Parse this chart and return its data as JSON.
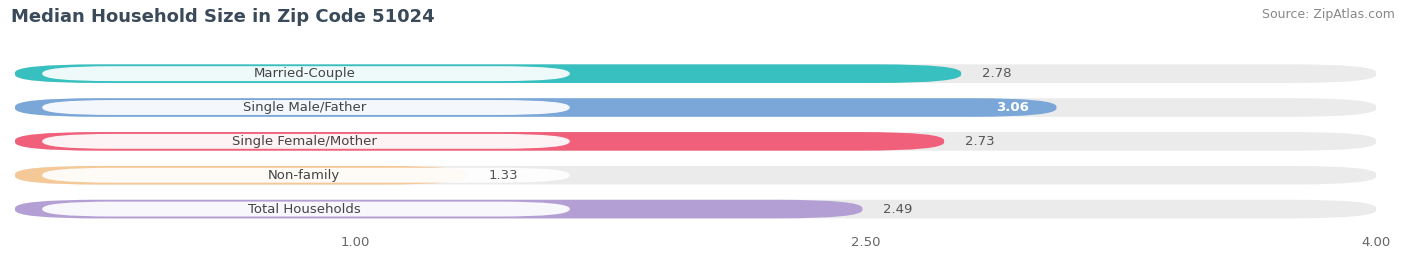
{
  "title": "Median Household Size in Zip Code 51024",
  "source": "Source: ZipAtlas.com",
  "categories": [
    "Married-Couple",
    "Single Male/Father",
    "Single Female/Mother",
    "Non-family",
    "Total Households"
  ],
  "values": [
    2.78,
    3.06,
    2.73,
    1.33,
    2.49
  ],
  "bar_colors": [
    "#38c0c0",
    "#7ba7d8",
    "#f0607a",
    "#f5c898",
    "#b39fd4"
  ],
  "bar_bg_colors": [
    "#ebebeb",
    "#ebebeb",
    "#ebebeb",
    "#ebebeb",
    "#ebebeb"
  ],
  "value_inside": [
    false,
    true,
    false,
    false,
    false
  ],
  "xlim": [
    0.0,
    4.0
  ],
  "xstart": 0.0,
  "xticks": [
    1.0,
    2.5,
    4.0
  ],
  "bar_height": 0.55,
  "bar_gap": 1.0,
  "title_fontsize": 13,
  "source_fontsize": 9,
  "label_fontsize": 9.5,
  "value_fontsize": 9.5,
  "tick_fontsize": 9.5,
  "figsize": [
    14.06,
    2.69
  ],
  "dpi": 100,
  "background_color": "#ffffff"
}
